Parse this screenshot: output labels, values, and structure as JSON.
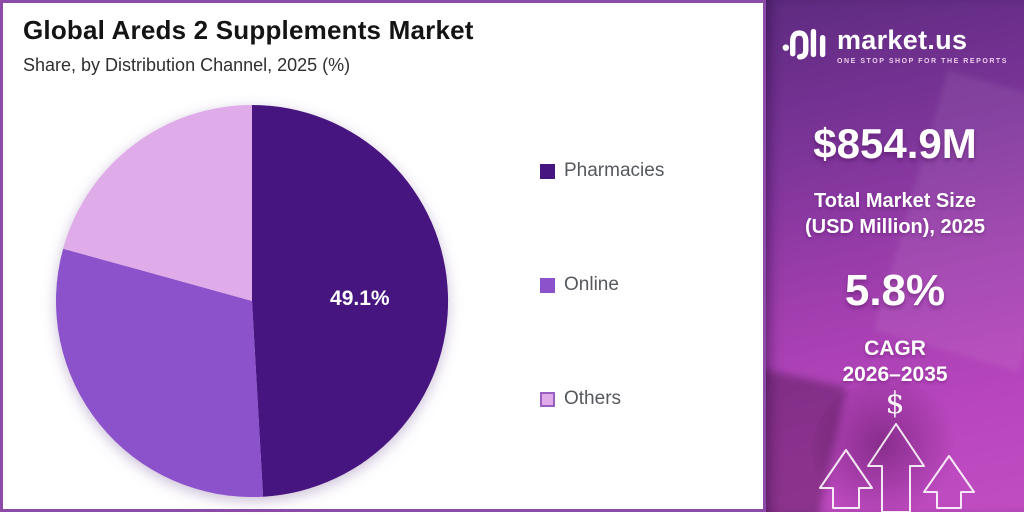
{
  "header": {
    "title": "Global Areds 2 Supplements Market",
    "subtitle": "Share, by Distribution Channel, 2025 (%)"
  },
  "chart_data": {
    "type": "pie",
    "title": "Global Areds 2 Supplements Market",
    "subtitle": "Share, by Distribution Channel, 2025 (%)",
    "unit": "%",
    "categories": [
      "Pharmacies",
      "Online",
      "Others"
    ],
    "values": [
      49.1,
      30.2,
      20.7
    ],
    "slice_labels": [
      "49.1%",
      "",
      ""
    ],
    "colors": [
      "#471580",
      "#8b52cb",
      "#dfabe9"
    ],
    "start_angle_deg": 0,
    "direction": "clockwise",
    "legend_position": "right"
  },
  "legend": {
    "items": [
      {
        "label": "Pharmacies",
        "color": "#471580"
      },
      {
        "label": "Online",
        "color": "#8b52cb"
      },
      {
        "label": "Others",
        "color": "#dfabe9",
        "border": "#9a5fc0"
      }
    ]
  },
  "sidebar": {
    "logo": {
      "brand": "market.us",
      "tagline": "ONE STOP SHOP FOR THE REPORTS"
    },
    "market_size": {
      "value": "$854.9M",
      "label_line1": "Total Market Size",
      "label_line2": "(USD Million), 2025"
    },
    "cagr": {
      "value": "5.8%",
      "label_line1": "CAGR",
      "label_line2": "2026–2035"
    },
    "dollar_symbol": "$"
  },
  "style": {
    "panel_border_color": "#8d4ba9",
    "pie_label_color": "#ffffff",
    "gradient_top": "#5e2b80",
    "gradient_bottom": "#c14dc2"
  }
}
